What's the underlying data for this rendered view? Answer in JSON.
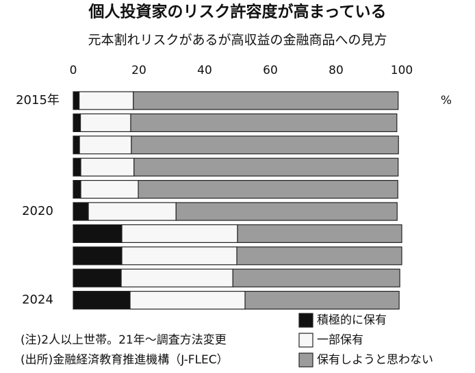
{
  "chart_data": {
    "type": "bar",
    "orientation": "horizontal",
    "stacked": true,
    "title": "個人投資家のリスク許容度が高まっている",
    "subtitle": "元本割れリスクがあるが高収益の金融商品への見方",
    "unit": "%",
    "note": "(注)2人以上世帯。21年～調査方法変更",
    "source": "(出所)金融経済教育推進機構（J-FLEC）",
    "categories": [
      "2015年",
      null,
      null,
      null,
      null,
      "2020",
      null,
      null,
      null,
      "2024"
    ],
    "series": [
      {
        "name": "積極的に保有",
        "color": "#111111",
        "values": [
          1.8,
          2.2,
          1.9,
          2.3,
          2.3,
          4.6,
          14.8,
          14.8,
          14.6,
          17.3
        ]
      },
      {
        "name": "一部保有",
        "color": "#f7f7f7",
        "values": [
          16.5,
          15.3,
          15.8,
          16.2,
          17.5,
          26.7,
          35.2,
          35.0,
          34.0,
          35.0
        ]
      },
      {
        "name": "保有しようと思わない",
        "color": "#9c9c9c",
        "values": [
          80.6,
          81.0,
          81.3,
          80.4,
          79.0,
          67.3,
          50.0,
          50.2,
          50.8,
          46.9
        ]
      }
    ],
    "xlim": [
      0,
      100
    ],
    "xticks": [
      0,
      20,
      40,
      60,
      80,
      100
    ]
  }
}
